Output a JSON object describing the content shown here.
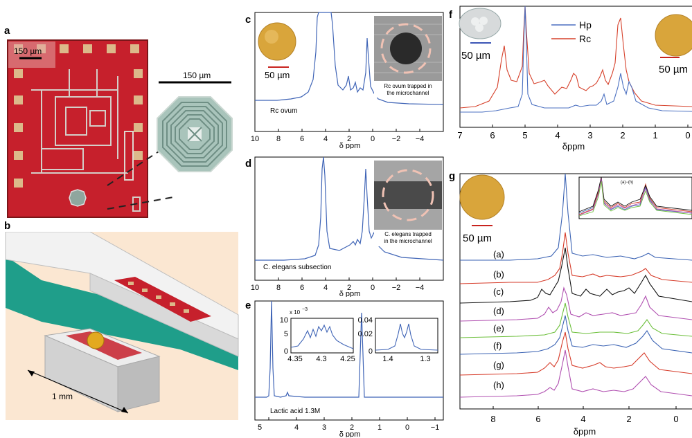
{
  "panels": {
    "a": {
      "label": "a",
      "scale_chip": "150 µm",
      "scale_coil": "150 µm"
    },
    "b": {
      "label": "b",
      "dim": "1 mm"
    },
    "c": {
      "label": "c",
      "xlabel": "δ ppm",
      "ticks": [
        "10",
        "8",
        "6",
        "4",
        "2",
        "0",
        "−2",
        "−4"
      ],
      "caption": "Rc ovum",
      "scale": "50 µm",
      "inset_caption_1": "Rc ovum trapped in",
      "inset_caption_2": "the microchannel"
    },
    "d": {
      "label": "d",
      "xlabel": "δ ppm",
      "ticks": [
        "10",
        "8",
        "6",
        "4",
        "2",
        "0",
        "−2",
        "−4"
      ],
      "caption": "C. elegans subsection",
      "inset_caption_1": "C. elegans trapped",
      "inset_caption_2": "in the microchannel"
    },
    "e": {
      "label": "e",
      "xlabel": "δ ppm",
      "ticks": [
        "5",
        "4",
        "3",
        "2",
        "1",
        "0",
        "−1"
      ],
      "caption": "Lactic acid 1.3M",
      "inset1_exp": "x 10",
      "inset1_exp_sup": "−3",
      "inset1_y": [
        "10",
        "5",
        "0"
      ],
      "inset1_x": [
        "4.35",
        "4.3",
        "4.25"
      ],
      "inset2_y": [
        "0.04",
        "0.02",
        "0"
      ],
      "inset2_x": [
        "1.4",
        "1.3"
      ]
    },
    "f": {
      "label": "f",
      "xlabel": "δppm",
      "ticks": [
        "7",
        "6",
        "5",
        "4",
        "3",
        "2",
        "1",
        "0"
      ],
      "scale_left": "50 µm",
      "scale_right": "50 µm",
      "legend": [
        "Hp",
        "Rc"
      ],
      "legend_colors": [
        "#4a6fc0",
        "#d6402a"
      ]
    },
    "g": {
      "label": "g",
      "xlabel": "δppm",
      "ticks": [
        "8",
        "6",
        "4",
        "2",
        "0"
      ],
      "scale": "50 µm",
      "inset_label": "(a)−(h)",
      "traces": [
        "(a)",
        "(b)",
        "(c)",
        "(d)",
        "(e)",
        "(f)",
        "(g)",
        "(h)"
      ],
      "trace_colors": [
        "#3a62b3",
        "#d63a28",
        "#111111",
        "#b04fb0",
        "#6cbf3a",
        "#3a62b3",
        "#d63a28",
        "#b04fb0"
      ]
    }
  },
  "colors": {
    "blue_trace": "#3f64b6",
    "chip_red": "#c6202c",
    "pad_tan": "#e0ba8a",
    "egg_gold": "#d9a53b",
    "scale_red": "#c8231e",
    "scale_blue": "#3b55b5"
  }
}
